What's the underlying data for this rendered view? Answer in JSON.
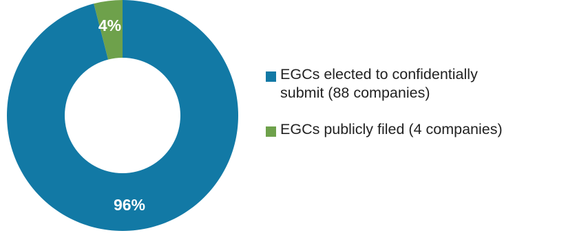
{
  "chart_data": {
    "type": "pie",
    "donut": true,
    "title": "",
    "slices": [
      {
        "name": "EGCs elected to confidentially\nsubmit (88 companies)",
        "value": 96,
        "label": "96%",
        "color": "#1279A5"
      },
      {
        "name": "EGCs publicly filed (4 companies)",
        "value": 4,
        "label": "4%",
        "color": "#6EA14B"
      }
    ],
    "legend_position": "right"
  }
}
